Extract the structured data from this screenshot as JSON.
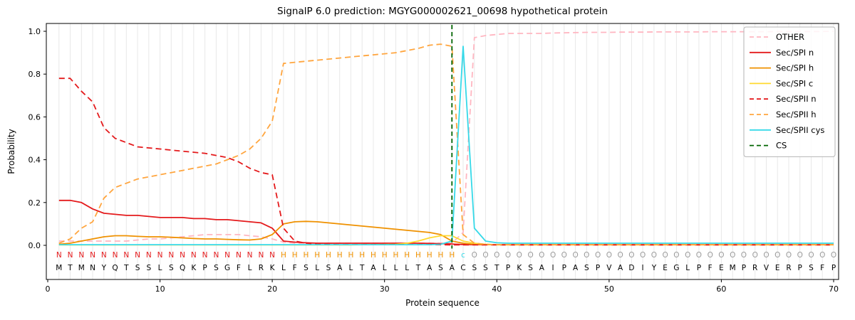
{
  "chart_data": {
    "type": "line",
    "title": "SignalP 6.0 prediction: MGYG000002621_00698 hypothetical protein",
    "xlabel": "Protein sequence",
    "ylabel": "Probability",
    "xlim": [
      -0.13,
      70.44
    ],
    "ylim": [
      -0.16,
      1.04
    ],
    "xticks": [
      0,
      10,
      20,
      30,
      40,
      50,
      60,
      70
    ],
    "yticks": [
      0.0,
      0.2,
      0.4,
      0.6,
      0.8,
      1.0
    ],
    "grid": "vertical-per-residue",
    "legend_position": "upper right",
    "x": [
      1,
      2,
      3,
      4,
      5,
      6,
      7,
      8,
      9,
      10,
      11,
      12,
      13,
      14,
      15,
      16,
      17,
      18,
      19,
      20,
      21,
      22,
      23,
      24,
      25,
      26,
      27,
      28,
      29,
      30,
      31,
      32,
      33,
      34,
      35,
      36,
      37,
      38,
      39,
      40,
      41,
      42,
      43,
      44,
      45,
      46,
      47,
      48,
      49,
      50,
      51,
      52,
      53,
      54,
      55,
      56,
      57,
      58,
      59,
      60,
      61,
      62,
      63,
      64,
      65,
      66,
      67,
      68,
      69,
      70
    ],
    "series": [
      {
        "name": "OTHER",
        "color": "#ffb6c1",
        "dash": "dashed",
        "values": [
          0.02,
          0.02,
          0.02,
          0.02,
          0.02,
          0.02,
          0.02,
          0.025,
          0.03,
          0.03,
          0.035,
          0.04,
          0.045,
          0.05,
          0.05,
          0.05,
          0.05,
          0.045,
          0.04,
          0.03,
          0.015,
          0.01,
          0.01,
          0.01,
          0.01,
          0.01,
          0.01,
          0.01,
          0.01,
          0.01,
          0.01,
          0.01,
          0.01,
          0.01,
          0.01,
          0.01,
          0.06,
          0.97,
          0.98,
          0.985,
          0.99,
          0.99,
          0.99,
          0.99,
          0.992,
          0.993,
          0.994,
          0.995,
          0.995,
          0.995,
          0.996,
          0.996,
          0.996,
          0.997,
          0.997,
          0.997,
          0.997,
          0.997,
          0.998,
          0.998,
          0.998,
          0.998,
          0.998,
          0.998,
          0.999,
          0.999,
          0.999,
          0.999,
          0.999,
          1.0
        ]
      },
      {
        "name": "Sec/SPI n",
        "color": "#e41a1c",
        "dash": "solid",
        "values": [
          0.21,
          0.21,
          0.2,
          0.17,
          0.15,
          0.145,
          0.14,
          0.14,
          0.135,
          0.13,
          0.13,
          0.13,
          0.125,
          0.125,
          0.12,
          0.12,
          0.115,
          0.11,
          0.105,
          0.08,
          0.02,
          0.015,
          0.012,
          0.01,
          0.01,
          0.01,
          0.01,
          0.01,
          0.01,
          0.01,
          0.01,
          0.01,
          0.01,
          0.009,
          0.008,
          0.006,
          0.004,
          0.003,
          0.003,
          0.003,
          0.003,
          0.003,
          0.003,
          0.003,
          0.003,
          0.003,
          0.003,
          0.003,
          0.003,
          0.003,
          0.003,
          0.003,
          0.003,
          0.003,
          0.003,
          0.003,
          0.003,
          0.003,
          0.003,
          0.003,
          0.003,
          0.003,
          0.003,
          0.003,
          0.003,
          0.003,
          0.003,
          0.003,
          0.003,
          0.003
        ]
      },
      {
        "name": "Sec/SPI h",
        "color": "#ef9100",
        "dash": "solid",
        "values": [
          0.005,
          0.01,
          0.02,
          0.03,
          0.04,
          0.045,
          0.045,
          0.042,
          0.04,
          0.04,
          0.038,
          0.035,
          0.032,
          0.03,
          0.03,
          0.028,
          0.026,
          0.025,
          0.03,
          0.05,
          0.1,
          0.11,
          0.112,
          0.11,
          0.105,
          0.1,
          0.095,
          0.09,
          0.085,
          0.08,
          0.075,
          0.07,
          0.065,
          0.06,
          0.05,
          0.02,
          0.01,
          0.005,
          0.003,
          0.003,
          0.003,
          0.003,
          0.003,
          0.003,
          0.003,
          0.003,
          0.003,
          0.003,
          0.003,
          0.003,
          0.003,
          0.003,
          0.003,
          0.003,
          0.003,
          0.003,
          0.003,
          0.003,
          0.003,
          0.003,
          0.003,
          0.003,
          0.003,
          0.003,
          0.003,
          0.003,
          0.003,
          0.003,
          0.003,
          0.003
        ]
      },
      {
        "name": "Sec/SPI c",
        "color": "#ffd92f",
        "dash": "solid",
        "values": [
          0.002,
          0.002,
          0.002,
          0.002,
          0.002,
          0.002,
          0.002,
          0.002,
          0.002,
          0.002,
          0.002,
          0.002,
          0.002,
          0.002,
          0.002,
          0.002,
          0.002,
          0.002,
          0.002,
          0.002,
          0.002,
          0.002,
          0.002,
          0.002,
          0.002,
          0.002,
          0.002,
          0.003,
          0.003,
          0.004,
          0.005,
          0.01,
          0.02,
          0.035,
          0.045,
          0.045,
          0.02,
          0.01,
          0.005,
          0.002,
          0.002,
          0.002,
          0.002,
          0.002,
          0.002,
          0.002,
          0.002,
          0.002,
          0.002,
          0.002,
          0.002,
          0.002,
          0.002,
          0.002,
          0.002,
          0.002,
          0.002,
          0.002,
          0.002,
          0.002,
          0.002,
          0.002,
          0.002,
          0.002,
          0.002,
          0.002,
          0.002,
          0.002,
          0.002,
          0.002
        ]
      },
      {
        "name": "Sec/SPII n",
        "color": "#e41a1c",
        "dash": "dashed",
        "values": [
          0.78,
          0.78,
          0.72,
          0.67,
          0.55,
          0.5,
          0.48,
          0.46,
          0.455,
          0.45,
          0.445,
          0.44,
          0.435,
          0.43,
          0.42,
          0.41,
          0.39,
          0.36,
          0.34,
          0.33,
          0.08,
          0.02,
          0.01,
          0.005,
          0.004,
          0.003,
          0.003,
          0.003,
          0.003,
          0.003,
          0.003,
          0.003,
          0.003,
          0.003,
          0.003,
          0.002,
          0.002,
          0.002,
          0.002,
          0.002,
          0.002,
          0.002,
          0.002,
          0.002,
          0.002,
          0.002,
          0.002,
          0.002,
          0.002,
          0.002,
          0.002,
          0.002,
          0.002,
          0.002,
          0.002,
          0.002,
          0.002,
          0.002,
          0.002,
          0.002,
          0.002,
          0.002,
          0.002,
          0.002,
          0.002,
          0.002,
          0.002,
          0.002,
          0.002,
          0.002
        ]
      },
      {
        "name": "Sec/SPII h",
        "color": "#ffa53e",
        "dash": "dashed",
        "values": [
          0.01,
          0.03,
          0.08,
          0.11,
          0.22,
          0.27,
          0.29,
          0.31,
          0.32,
          0.33,
          0.34,
          0.35,
          0.36,
          0.37,
          0.38,
          0.4,
          0.42,
          0.45,
          0.5,
          0.58,
          0.85,
          0.855,
          0.86,
          0.865,
          0.87,
          0.875,
          0.88,
          0.885,
          0.89,
          0.895,
          0.9,
          0.91,
          0.92,
          0.935,
          0.94,
          0.93,
          0.05,
          0.01,
          0.005,
          0.003,
          0.003,
          0.003,
          0.003,
          0.003,
          0.003,
          0.003,
          0.003,
          0.003,
          0.003,
          0.003,
          0.003,
          0.003,
          0.003,
          0.003,
          0.003,
          0.003,
          0.003,
          0.003,
          0.003,
          0.003,
          0.003,
          0.003,
          0.003,
          0.003,
          0.003,
          0.003,
          0.003,
          0.003,
          0.003,
          0.003
        ]
      },
      {
        "name": "Sec/SPII cys",
        "color": "#36d9e8",
        "dash": "solid",
        "values": [
          0.003,
          0.003,
          0.003,
          0.003,
          0.003,
          0.003,
          0.003,
          0.003,
          0.003,
          0.003,
          0.003,
          0.003,
          0.003,
          0.003,
          0.003,
          0.003,
          0.003,
          0.003,
          0.003,
          0.003,
          0.003,
          0.003,
          0.003,
          0.003,
          0.003,
          0.003,
          0.003,
          0.003,
          0.003,
          0.003,
          0.003,
          0.003,
          0.003,
          0.003,
          0.005,
          0.02,
          0.93,
          0.08,
          0.02,
          0.012,
          0.01,
          0.01,
          0.01,
          0.01,
          0.01,
          0.01,
          0.01,
          0.01,
          0.01,
          0.01,
          0.01,
          0.01,
          0.01,
          0.01,
          0.01,
          0.01,
          0.01,
          0.01,
          0.01,
          0.01,
          0.01,
          0.01,
          0.01,
          0.01,
          0.01,
          0.01,
          0.01,
          0.01,
          0.01,
          0.01
        ]
      }
    ],
    "cs_line": {
      "name": "CS",
      "x": 36,
      "color": "#006400",
      "dash": "dashed"
    },
    "annotation_rows": {
      "regions": "NNNNNNNNNNNNNNNNNNNNHHHHHHHHHHHHHHHHcOOOOOOOOOOOOOOOOOOOOOOOOOOOOOOOOO",
      "sequence": "MTMNYQTSSLSQKPSGFLRKLFSLSALTALLLTASACSSTPKSAIPASPVADIYEGLPFEMPRVERPSFP",
      "region_colors": {
        "N": "#e41a1c",
        "H": "#ef9100",
        "c": "#36d9e8",
        "C": "#36d9e8",
        "O": "#9b9b9b"
      }
    },
    "legend": {
      "entries": [
        "OTHER",
        "Sec/SPI n",
        "Sec/SPI h",
        "Sec/SPI c",
        "Sec/SPII n",
        "Sec/SPII h",
        "Sec/SPII cys",
        "CS"
      ]
    }
  }
}
